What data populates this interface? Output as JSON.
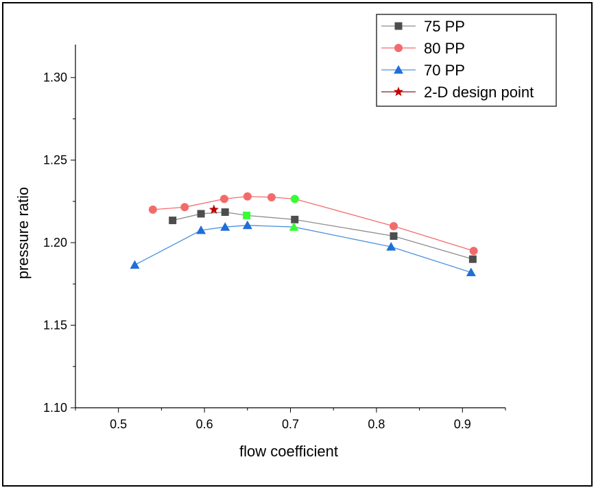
{
  "chart_data": {
    "type": "line",
    "title": "",
    "xlabel": "flow coefficient",
    "ylabel": "pressure ratio",
    "xlim": [
      0.45,
      0.95
    ],
    "ylim": [
      1.1,
      1.32
    ],
    "x_ticks": [
      0.5,
      0.6,
      0.7,
      0.8,
      0.9
    ],
    "y_ticks": [
      1.1,
      1.15,
      1.2,
      1.25,
      1.3
    ],
    "x_tick_labels": [
      "0.5",
      "0.6",
      "0.7",
      "0.8",
      "0.9"
    ],
    "y_tick_labels": [
      "1.10",
      "1.15",
      "1.20",
      "1.25",
      "1.30"
    ],
    "grid": false,
    "legend_position": "top-right",
    "series": [
      {
        "name": "75 PP",
        "marker": "square",
        "color": "#4d4d4d",
        "line_color": "#8c8c8c",
        "x": [
          0.563,
          0.596,
          0.624,
          0.649,
          0.705,
          0.82,
          0.912
        ],
        "y": [
          1.2135,
          1.2175,
          1.2185,
          1.2165,
          1.214,
          1.204,
          1.19
        ],
        "highlight_index": 3,
        "highlight_color": "#33ff33"
      },
      {
        "name": "80 PP",
        "marker": "circle",
        "color": "#f26b6b",
        "line_color": "#f26b6b",
        "x": [
          0.54,
          0.577,
          0.623,
          0.65,
          0.678,
          0.705,
          0.82,
          0.913
        ],
        "y": [
          1.22,
          1.2215,
          1.2265,
          1.228,
          1.2275,
          1.2265,
          1.21,
          1.195
        ],
        "highlight_index": 5,
        "highlight_color": "#33ff33"
      },
      {
        "name": "70 PP",
        "marker": "triangle",
        "color": "#1f6fd6",
        "line_color": "#4a90e2",
        "x": [
          0.519,
          0.596,
          0.624,
          0.65,
          0.704,
          0.817,
          0.91
        ],
        "y": [
          1.1865,
          1.2075,
          1.2095,
          1.2105,
          1.2095,
          1.1975,
          1.182
        ],
        "highlight_index": 4,
        "highlight_color": "#33ff33"
      },
      {
        "name": "2-D design point",
        "marker": "star",
        "color": "#c00000",
        "line_color": "#8b1a1a",
        "x": [
          0.611
        ],
        "y": [
          1.22
        ]
      }
    ]
  }
}
